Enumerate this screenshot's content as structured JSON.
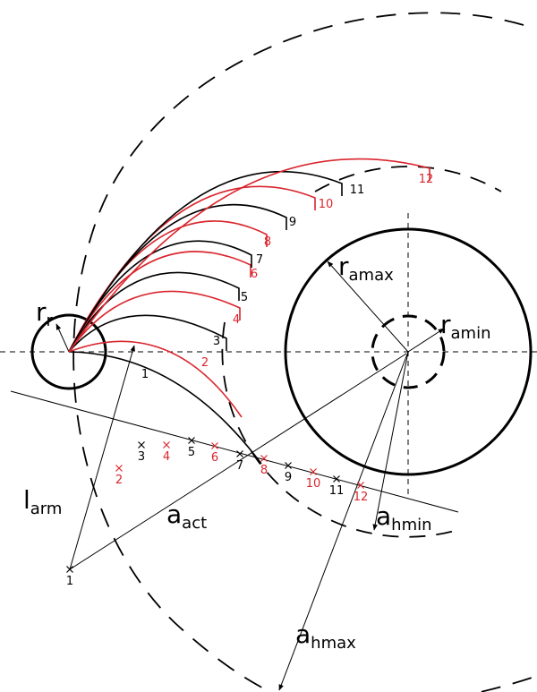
{
  "symbols": {
    "r_r": {
      "main": "r",
      "sub": "r"
    },
    "r_amax": {
      "main": "r",
      "sub": "amax"
    },
    "r_amin": {
      "main": "r",
      "sub": "amin"
    },
    "l_arm": {
      "main": "l",
      "sub": "arm"
    },
    "a_act": {
      "main": "a",
      "sub": "act"
    },
    "a_hmin": {
      "main": "a",
      "sub": "hmin"
    },
    "a_hmax": {
      "main": "a",
      "sub": "hmax"
    }
  },
  "curve_labels": [
    "1",
    "2",
    "3",
    "4",
    "5",
    "6",
    "7",
    "8",
    "9",
    "10",
    "11",
    "12"
  ],
  "point_labels": [
    "1",
    "2",
    "3",
    "4",
    "5",
    "6",
    "7",
    "8",
    "9",
    "10",
    "11",
    "12"
  ]
}
